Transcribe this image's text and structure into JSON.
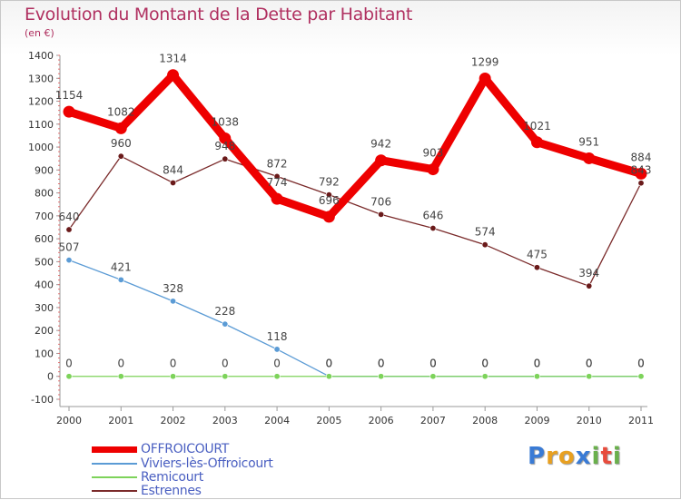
{
  "title": "Evolution du Montant de la Dette par Habitant",
  "subtitle": "(en €)",
  "brand": {
    "letters": [
      "P",
      "r",
      "o",
      "x",
      "i",
      "t",
      "i"
    ],
    "colors": [
      "#3a7bd5",
      "#e8a020",
      "#e8a020",
      "#3a7bd5",
      "#6ab04c",
      "#e84c3d",
      "#6ab04c"
    ]
  },
  "chart_data": {
    "type": "line",
    "x": [
      "2000",
      "2001",
      "2002",
      "2003",
      "2004",
      "2005",
      "2006",
      "2007",
      "2008",
      "2009",
      "2010",
      "2011"
    ],
    "ylim": [
      -100,
      1400
    ],
    "yticks": [
      "1400",
      "1300",
      "1200",
      "1100",
      "1000",
      "900",
      "800",
      "700",
      "600",
      "500",
      "400",
      "300",
      "200",
      "100",
      "0",
      "-100"
    ],
    "grid": false,
    "legend_position": "bottom-left",
    "series": [
      {
        "name": "OFFROICOURT",
        "color": "#ee0000",
        "values": [
          1154,
          1082,
          1314,
          1038,
          774,
          696,
          942,
          903,
          1299,
          1021,
          951,
          884
        ],
        "labels": [
          "1154",
          "1082",
          "1314",
          "1038",
          "774",
          "696",
          "942",
          "903",
          "1299",
          "1021",
          "951",
          "884"
        ]
      },
      {
        "name": "Viviers-lès-Offroicourt",
        "color": "#5b9bd5",
        "values": [
          507,
          421,
          328,
          228,
          118,
          0,
          0,
          0,
          0,
          0,
          0,
          0
        ],
        "labels": [
          "507",
          "421",
          "328",
          "228",
          "118",
          "0",
          "0",
          "0",
          "0",
          "0",
          "0",
          "0"
        ]
      },
      {
        "name": "Remicourt",
        "color": "#7dd35a",
        "values": [
          0,
          0,
          0,
          0,
          0,
          0,
          0,
          0,
          0,
          0,
          0,
          0
        ],
        "labels": [
          "0",
          "0",
          "0",
          "0",
          "0",
          "0",
          "0",
          "0",
          "0",
          "0",
          "0",
          "0"
        ]
      },
      {
        "name": "Estrennes",
        "color": "#7a2a2a",
        "values": [
          640,
          960,
          844,
          948,
          872,
          792,
          706,
          646,
          574,
          475,
          394,
          843
        ],
        "labels": [
          "640",
          "960",
          "844",
          "948",
          "872",
          "792",
          "706",
          "646",
          "574",
          "475",
          "394",
          "843"
        ]
      }
    ]
  }
}
